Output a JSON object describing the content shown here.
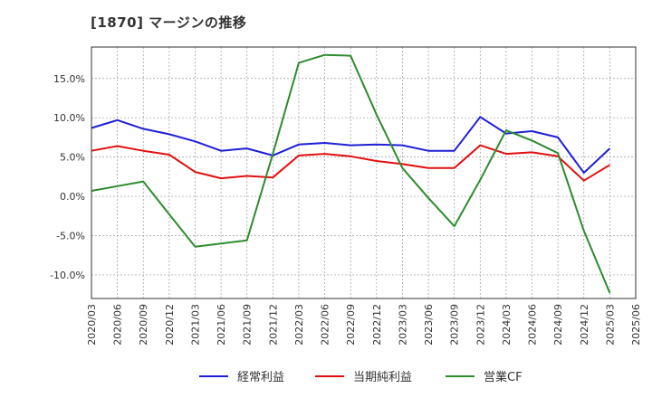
{
  "chart_data": {
    "type": "line",
    "title": "[1870]  マージンの推移",
    "x": [
      "2020/03",
      "2020/06",
      "2020/09",
      "2020/12",
      "2021/03",
      "2021/06",
      "2021/09",
      "2021/12",
      "2022/03",
      "2022/06",
      "2022/09",
      "2022/12",
      "2023/03",
      "2023/06",
      "2023/09",
      "2023/12",
      "2024/03",
      "2024/06",
      "2024/09",
      "2024/12",
      "2025/03",
      "2025/06"
    ],
    "yticks": [
      -10,
      -5,
      0,
      5,
      10,
      15
    ],
    "ytick_labels": [
      "-10.0%",
      "-5.0%",
      "0.0%",
      "5.0%",
      "10.0%",
      "15.0%"
    ],
    "ylim": [
      -13,
      19
    ],
    "grid": true,
    "legend_position": "bottom",
    "series": [
      {
        "name": "経常利益",
        "color": "#1f1fd6",
        "values": [
          8.7,
          9.7,
          8.6,
          7.9,
          7.0,
          5.8,
          6.1,
          5.2,
          6.6,
          6.8,
          6.5,
          6.6,
          6.5,
          5.8,
          5.8,
          10.1,
          8.0,
          8.3,
          7.5,
          3.0,
          6.1,
          null
        ]
      },
      {
        "name": "当期純利益",
        "color": "#e01010",
        "values": [
          5.8,
          6.4,
          5.8,
          5.3,
          3.1,
          2.3,
          2.6,
          2.4,
          5.2,
          5.4,
          5.1,
          4.5,
          4.1,
          3.6,
          3.6,
          6.5,
          5.4,
          5.6,
          5.1,
          2.0,
          4.0,
          null
        ]
      },
      {
        "name": "営業CF",
        "color": "#2e8b2e",
        "values": [
          0.7,
          1.3,
          1.9,
          -2.3,
          -6.4,
          -6.0,
          -5.6,
          5.4,
          17.0,
          18.0,
          17.9,
          10.4,
          3.6,
          -0.2,
          -3.8,
          2.1,
          8.4,
          7.1,
          5.5,
          -4.4,
          -12.3,
          null
        ]
      }
    ]
  }
}
